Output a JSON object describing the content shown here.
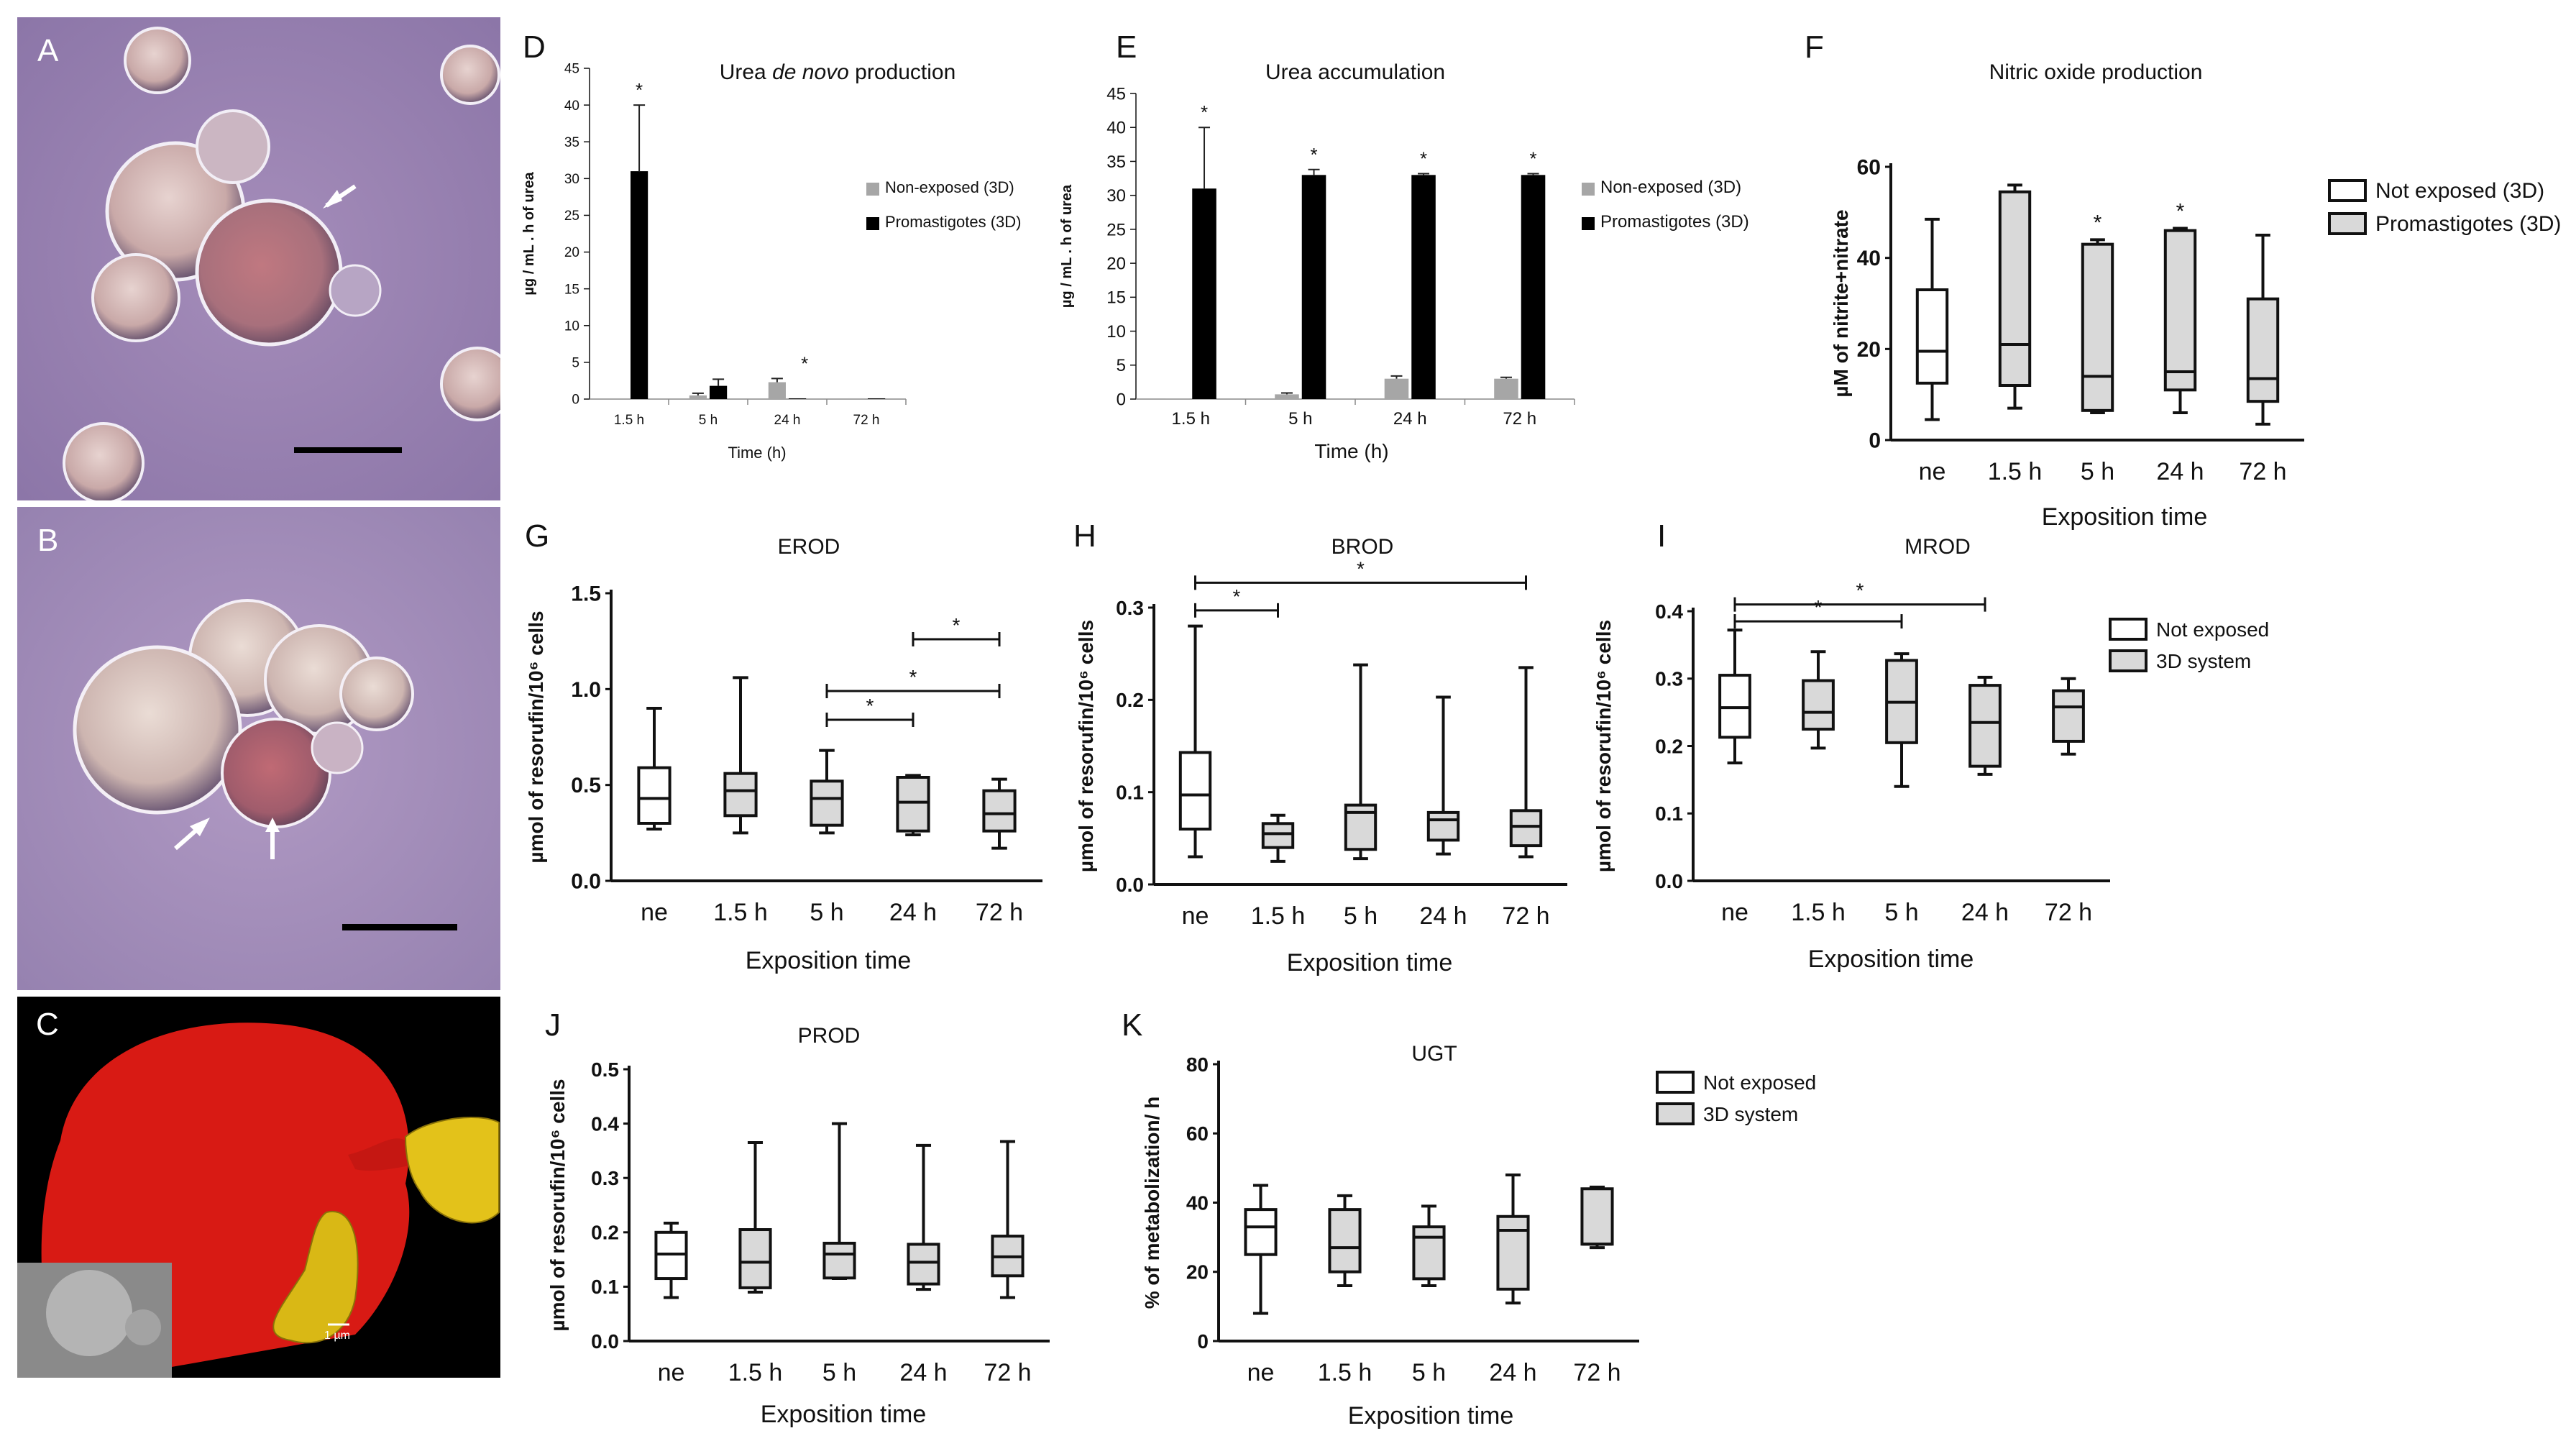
{
  "photos": {
    "A": {
      "label": "A"
    },
    "B": {
      "label": "B"
    },
    "C": {
      "label": "C",
      "scale_text": "1 µm"
    }
  },
  "chart_data": [
    {
      "id": "D",
      "panel_label": "D",
      "type": "bar",
      "title": "Urea de novo production",
      "title_parts": [
        "Urea ",
        "de novo",
        " production"
      ],
      "categories": [
        "1.5 h",
        "5 h",
        "24 h",
        "72 h"
      ],
      "series": [
        {
          "name": "Non-exposed (3D)",
          "color": "#a6a6a6",
          "values": [
            0.1,
            0.5,
            2.3,
            0.1
          ],
          "errors": [
            0,
            0.3,
            0.5,
            0
          ]
        },
        {
          "name": "Promastigotes (3D)",
          "color": "#000000",
          "values": [
            31,
            1.8,
            0.1,
            0.1
          ],
          "errors": [
            9,
            0.9,
            0,
            0
          ]
        }
      ],
      "stars": [
        "*",
        "",
        "*",
        ""
      ],
      "yticks": [
        0,
        5,
        10,
        15,
        20,
        25,
        30,
        35,
        40,
        45
      ],
      "ylim": [
        0,
        45
      ],
      "xlabel": "Time (h)",
      "ylabel": "µg / mL . h of urea"
    },
    {
      "id": "E",
      "panel_label": "E",
      "type": "bar",
      "title": "Urea accumulation",
      "categories": [
        "1.5 h",
        "5 h",
        "24 h",
        "72 h"
      ],
      "series": [
        {
          "name": "Non-exposed (3D)",
          "color": "#a6a6a6",
          "values": [
            0.1,
            0.7,
            3.0,
            3.0
          ],
          "errors": [
            0,
            0.2,
            0.4,
            0.2
          ]
        },
        {
          "name": "Promastigotes (3D)",
          "color": "#000000",
          "values": [
            31,
            33,
            33,
            33
          ],
          "errors": [
            9,
            0.8,
            0.2,
            0.2
          ]
        }
      ],
      "stars": [
        "*",
        "*",
        "*",
        "*"
      ],
      "yticks": [
        0,
        5,
        10,
        15,
        20,
        25,
        30,
        35,
        40,
        45
      ],
      "ylim": [
        0,
        45
      ],
      "xlabel": "Time (h)",
      "ylabel": "µg / mL . h of urea"
    },
    {
      "id": "F",
      "panel_label": "F",
      "type": "box",
      "title": "Nitric oxide production",
      "categories": [
        "ne",
        "1.5 h",
        "5 h",
        "24 h",
        "72 h"
      ],
      "boxes": [
        {
          "min": 4.5,
          "q1": 12.5,
          "median": 19.5,
          "q3": 33,
          "max": 48.5,
          "exposed": false
        },
        {
          "min": 7,
          "q1": 12,
          "median": 21,
          "q3": 54.5,
          "max": 56,
          "exposed": true
        },
        {
          "min": 6,
          "q1": 6.5,
          "median": 14,
          "q3": 43,
          "max": 44,
          "exposed": true
        },
        {
          "min": 6,
          "q1": 11,
          "median": 15,
          "q3": 46,
          "max": 46.5,
          "exposed": true
        },
        {
          "min": 3.5,
          "q1": 8.5,
          "median": 13.5,
          "q3": 31,
          "max": 45,
          "exposed": true
        }
      ],
      "stars": [
        "",
        "",
        "*",
        "*",
        ""
      ],
      "yticks": [
        0,
        20,
        40,
        60
      ],
      "ylim": [
        0,
        60
      ],
      "legend": [
        "Not exposed (3D)",
        "Promastigotes (3D)"
      ],
      "xlabel": "Exposition time",
      "ylabel": "µM of nitrite+nitrate"
    },
    {
      "id": "G",
      "panel_label": "G",
      "type": "box",
      "title": "EROD",
      "categories": [
        "ne",
        "1.5 h",
        "5 h",
        "24 h",
        "72 h"
      ],
      "boxes": [
        {
          "min": 0.27,
          "q1": 0.3,
          "median": 0.43,
          "q3": 0.59,
          "max": 0.9,
          "exposed": false
        },
        {
          "min": 0.25,
          "q1": 0.34,
          "median": 0.47,
          "q3": 0.56,
          "max": 1.06,
          "exposed": true
        },
        {
          "min": 0.25,
          "q1": 0.29,
          "median": 0.43,
          "q3": 0.52,
          "max": 0.68,
          "exposed": true
        },
        {
          "min": 0.24,
          "q1": 0.26,
          "median": 0.41,
          "q3": 0.54,
          "max": 0.55,
          "exposed": true
        },
        {
          "min": 0.17,
          "q1": 0.26,
          "median": 0.35,
          "q3": 0.47,
          "max": 0.53,
          "exposed": true
        }
      ],
      "brackets": [
        {
          "from": 2,
          "to": 3,
          "y": 0.84,
          "star": "*"
        },
        {
          "from": 2,
          "to": 4,
          "y": 0.99,
          "star": "*"
        },
        {
          "from": 3,
          "to": 4,
          "y": 1.26,
          "star": "*"
        }
      ],
      "yticks": [
        0.0,
        0.5,
        1.0,
        1.5
      ],
      "ytick_labels": [
        "0.0",
        "0.5",
        "1.0",
        "1.5"
      ],
      "ylim": [
        0,
        1.5
      ],
      "xlabel": "Exposition time",
      "ylabel": "µmol of resorufin/10⁶ cells"
    },
    {
      "id": "H",
      "panel_label": "H",
      "type": "box",
      "title": "BROD",
      "categories": [
        "ne",
        "1.5 h",
        "5 h",
        "24 h",
        "72 h"
      ],
      "boxes": [
        {
          "min": 0.03,
          "q1": 0.06,
          "median": 0.097,
          "q3": 0.143,
          "max": 0.28,
          "exposed": false
        },
        {
          "min": 0.025,
          "q1": 0.04,
          "median": 0.055,
          "q3": 0.066,
          "max": 0.075,
          "exposed": true
        },
        {
          "min": 0.028,
          "q1": 0.038,
          "median": 0.078,
          "q3": 0.086,
          "max": 0.238,
          "exposed": true
        },
        {
          "min": 0.033,
          "q1": 0.048,
          "median": 0.07,
          "q3": 0.078,
          "max": 0.203,
          "exposed": true
        },
        {
          "min": 0.03,
          "q1": 0.042,
          "median": 0.063,
          "q3": 0.08,
          "max": 0.235,
          "exposed": true
        }
      ],
      "brackets": [
        {
          "from": 0,
          "to": 1,
          "y": 0.297,
          "star": "*"
        },
        {
          "from": 0,
          "to": 4,
          "y": 0.327,
          "star": "*"
        }
      ],
      "yticks": [
        0.0,
        0.1,
        0.2,
        0.3
      ],
      "ytick_labels": [
        "0.0",
        "0.1",
        "0.2",
        "0.3"
      ],
      "ylim": [
        0,
        0.3
      ],
      "xlabel": "Exposition time",
      "ylabel": "µmol of resorufin/10⁶ cells"
    },
    {
      "id": "I",
      "panel_label": "I",
      "type": "box",
      "title": "MROD",
      "categories": [
        "ne",
        "1.5 h",
        "5 h",
        "24 h",
        "72 h"
      ],
      "boxes": [
        {
          "min": 0.175,
          "q1": 0.213,
          "median": 0.257,
          "q3": 0.305,
          "max": 0.372,
          "exposed": false
        },
        {
          "min": 0.197,
          "q1": 0.225,
          "median": 0.25,
          "q3": 0.297,
          "max": 0.34,
          "exposed": true
        },
        {
          "min": 0.14,
          "q1": 0.205,
          "median": 0.265,
          "q3": 0.327,
          "max": 0.337,
          "exposed": true
        },
        {
          "min": 0.158,
          "q1": 0.17,
          "median": 0.235,
          "q3": 0.29,
          "max": 0.302,
          "exposed": true
        },
        {
          "min": 0.188,
          "q1": 0.207,
          "median": 0.258,
          "q3": 0.282,
          "max": 0.3,
          "exposed": true
        }
      ],
      "brackets": [
        {
          "from": 0,
          "to": 2,
          "y": 0.385,
          "star": "*"
        },
        {
          "from": 0,
          "to": 3,
          "y": 0.41,
          "star": "*"
        }
      ],
      "yticks": [
        0.0,
        0.1,
        0.2,
        0.3,
        0.4
      ],
      "ytick_labels": [
        "0.0",
        "0.1",
        "0.2",
        "0.3",
        "0.4"
      ],
      "ylim": [
        0,
        0.4
      ],
      "legend": [
        "Not exposed",
        "3D system"
      ],
      "xlabel": "Exposition time",
      "ylabel": "µmol of resorufin/10⁶ cells"
    },
    {
      "id": "J",
      "panel_label": "J",
      "type": "box",
      "title": "PROD",
      "categories": [
        "ne",
        "1.5 h",
        "5 h",
        "24 h",
        "72 h"
      ],
      "boxes": [
        {
          "min": 0.08,
          "q1": 0.115,
          "median": 0.16,
          "q3": 0.2,
          "max": 0.217,
          "exposed": false
        },
        {
          "min": 0.09,
          "q1": 0.098,
          "median": 0.145,
          "q3": 0.205,
          "max": 0.365,
          "exposed": true
        },
        {
          "min": 0.115,
          "q1": 0.116,
          "median": 0.16,
          "q3": 0.18,
          "max": 0.4,
          "exposed": true
        },
        {
          "min": 0.095,
          "q1": 0.105,
          "median": 0.145,
          "q3": 0.178,
          "max": 0.36,
          "exposed": true
        },
        {
          "min": 0.08,
          "q1": 0.12,
          "median": 0.155,
          "q3": 0.193,
          "max": 0.367,
          "exposed": true
        }
      ],
      "yticks": [
        0.0,
        0.1,
        0.2,
        0.3,
        0.4,
        0.5
      ],
      "ytick_labels": [
        "0.0",
        "0.1",
        "0.2",
        "0.3",
        "0.4",
        "0.5"
      ],
      "ylim": [
        0,
        0.5
      ],
      "xlabel": "Exposition time",
      "ylabel": "µmol of resorufin/10⁶ cells"
    },
    {
      "id": "K",
      "panel_label": "K",
      "type": "box",
      "title": "UGT",
      "categories": [
        "ne",
        "1.5 h",
        "5 h",
        "24 h",
        "72 h"
      ],
      "boxes": [
        {
          "min": 8,
          "q1": 25,
          "median": 33,
          "q3": 38,
          "max": 45,
          "exposed": false
        },
        {
          "min": 16,
          "q1": 20,
          "median": 27,
          "q3": 38,
          "max": 42,
          "exposed": true
        },
        {
          "min": 16,
          "q1": 18,
          "median": 30,
          "q3": 33,
          "max": 39,
          "exposed": true
        },
        {
          "min": 11,
          "q1": 15,
          "median": 32,
          "q3": 36,
          "max": 48,
          "exposed": true
        },
        {
          "min": 27,
          "q1": 28,
          "median": 28,
          "q3": 44,
          "max": 44.5,
          "exposed": true
        }
      ],
      "yticks": [
        0,
        20,
        40,
        60,
        80
      ],
      "ylim": [
        0,
        80
      ],
      "legend": [
        "Not exposed",
        "3D system"
      ],
      "xlabel": "Exposition time",
      "ylabel": "% of metabolization/ h"
    }
  ]
}
